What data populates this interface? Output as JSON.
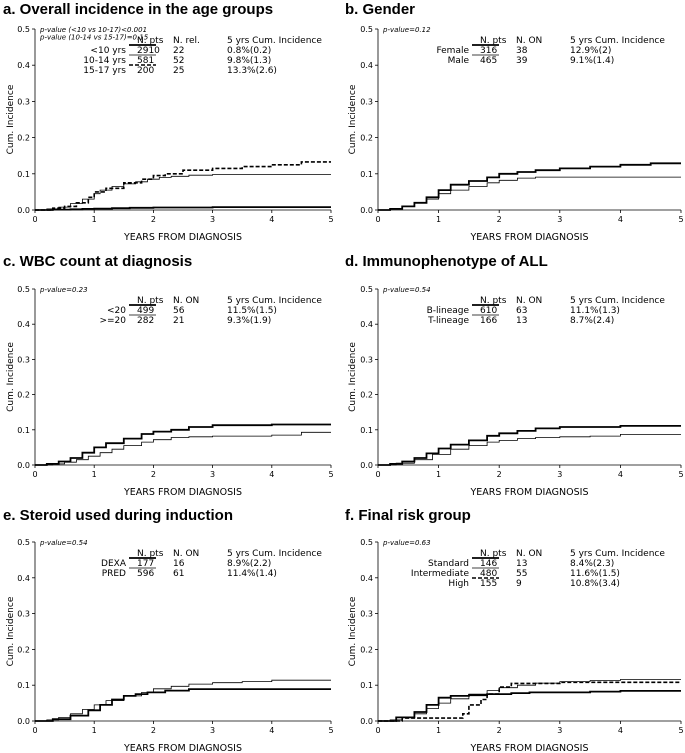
{
  "chart_data": [
    {
      "id": "a",
      "type": "line",
      "title": "a. Overall incidence in the age groups",
      "xlabel": "YEARS FROM DIAGNOSIS",
      "ylabel": "Cum. Incidence",
      "xlim": [
        0,
        5
      ],
      "ylim": [
        0,
        0.5
      ],
      "xticks": [
        "0",
        "1",
        "2",
        "3",
        "4",
        "5"
      ],
      "yticks": [
        "0.0",
        "0.1",
        "0.2",
        "0.3",
        "0.4",
        "0.5"
      ],
      "pvalue_lines": [
        "p-value (<10 vs 10-17)<0.001",
        "p-value (10-14 vs 15-17)=0.15"
      ],
      "legend_headers": [
        "N. pts",
        "N. rel.",
        "5 yrs Cum. Incidence"
      ],
      "series": [
        {
          "name": "<10 yrs",
          "style": "thick",
          "n": "2910",
          "events": "22",
          "ci": "0.8%(0.2)",
          "x": [
            0,
            0.3,
            0.6,
            0.8,
            1.0,
            1.3,
            1.6,
            2.0,
            2.5,
            3.0,
            5.0
          ],
          "y": [
            0,
            0.001,
            0.002,
            0.003,
            0.004,
            0.005,
            0.006,
            0.007,
            0.007,
            0.008,
            0.008
          ]
        },
        {
          "name": "10-14 yrs",
          "style": "thin",
          "n": "581",
          "events": "52",
          "ci": "9.8%(1.3)",
          "x": [
            0,
            0.2,
            0.4,
            0.6,
            0.8,
            1.0,
            1.1,
            1.3,
            1.5,
            1.7,
            1.9,
            2.1,
            2.3,
            2.6,
            3.0,
            5.0
          ],
          "y": [
            0,
            0.003,
            0.008,
            0.018,
            0.03,
            0.045,
            0.055,
            0.065,
            0.072,
            0.078,
            0.085,
            0.09,
            0.093,
            0.096,
            0.098,
            0.098
          ]
        },
        {
          "name": "15-17 yrs",
          "style": "dashed",
          "n": "200",
          "events": "25",
          "ci": "13.3%(2.6)",
          "x": [
            0,
            0.3,
            0.5,
            0.7,
            0.9,
            1.0,
            1.2,
            1.5,
            1.8,
            2.0,
            2.2,
            2.5,
            3.0,
            3.5,
            4.0,
            4.5,
            5.0
          ],
          "y": [
            0,
            0.005,
            0.01,
            0.02,
            0.035,
            0.05,
            0.06,
            0.075,
            0.085,
            0.095,
            0.1,
            0.11,
            0.115,
            0.12,
            0.125,
            0.133,
            0.133
          ]
        }
      ]
    },
    {
      "id": "b",
      "type": "line",
      "title": "b. Gender",
      "xlabel": "YEARS FROM DIAGNOSIS",
      "ylabel": "Cum. Incidence",
      "xlim": [
        0,
        5
      ],
      "ylim": [
        0,
        0.5
      ],
      "xticks": [
        "0",
        "1",
        "2",
        "3",
        "4",
        "5"
      ],
      "yticks": [
        "0.0",
        "0.1",
        "0.2",
        "0.3",
        "0.4",
        "0.5"
      ],
      "pvalue_lines": [
        "p-value=0.12"
      ],
      "legend_headers": [
        "N. pts",
        "N. ON",
        "5 yrs Cum. Incidence"
      ],
      "series": [
        {
          "name": "Female",
          "style": "thick",
          "n": "316",
          "events": "38",
          "ci": "12.9%(2)",
          "x": [
            0,
            0.2,
            0.4,
            0.6,
            0.8,
            1.0,
            1.2,
            1.5,
            1.8,
            2.0,
            2.3,
            2.6,
            3.0,
            3.5,
            4.0,
            4.5,
            5.0
          ],
          "y": [
            0,
            0.003,
            0.01,
            0.02,
            0.035,
            0.055,
            0.07,
            0.08,
            0.09,
            0.1,
            0.105,
            0.11,
            0.115,
            0.12,
            0.125,
            0.129,
            0.129
          ]
        },
        {
          "name": "Male",
          "style": "thin",
          "n": "465",
          "events": "39",
          "ci": "9.1%(1.4)",
          "x": [
            0,
            0.2,
            0.4,
            0.6,
            0.8,
            1.0,
            1.2,
            1.5,
            1.8,
            2.0,
            2.3,
            2.6,
            3.0,
            5.0
          ],
          "y": [
            0,
            0.003,
            0.01,
            0.02,
            0.03,
            0.045,
            0.055,
            0.065,
            0.075,
            0.082,
            0.088,
            0.091,
            0.091,
            0.091
          ]
        }
      ]
    },
    {
      "id": "c",
      "type": "line",
      "title": "c. WBC count at diagnosis",
      "xlabel": "YEARS FROM DIAGNOSIS",
      "ylabel": "Cum. Incidence",
      "xlim": [
        0,
        5
      ],
      "ylim": [
        0,
        0.5
      ],
      "xticks": [
        "0",
        "1",
        "2",
        "3",
        "4",
        "5"
      ],
      "yticks": [
        "0.0",
        "0.1",
        "0.2",
        "0.3",
        "0.4",
        "0.5"
      ],
      "pvalue_lines": [
        "p-value=0.23"
      ],
      "legend_headers": [
        "N. pts",
        "N. ON",
        "5 yrs Cum. Incidence"
      ],
      "series": [
        {
          "name": "<20",
          "style": "thick",
          "n": "499",
          "events": "56",
          "ci": "11.5%(1.5)",
          "x": [
            0,
            0.2,
            0.4,
            0.6,
            0.8,
            1.0,
            1.2,
            1.5,
            1.8,
            2.0,
            2.3,
            2.6,
            3.0,
            4.0,
            5.0
          ],
          "y": [
            0,
            0.003,
            0.01,
            0.02,
            0.035,
            0.05,
            0.062,
            0.075,
            0.088,
            0.095,
            0.1,
            0.108,
            0.113,
            0.115,
            0.115
          ]
        },
        {
          "name": ">=20",
          "style": "thin",
          "n": "282",
          "events": "21",
          "ci": "9.3%(1.9)",
          "x": [
            0,
            0.3,
            0.5,
            0.7,
            0.9,
            1.1,
            1.3,
            1.5,
            1.8,
            2.0,
            2.3,
            2.6,
            3.0,
            4.0,
            4.5,
            5.0
          ],
          "y": [
            0,
            0.003,
            0.008,
            0.015,
            0.025,
            0.035,
            0.045,
            0.055,
            0.065,
            0.072,
            0.078,
            0.08,
            0.082,
            0.085,
            0.093,
            0.093
          ]
        }
      ]
    },
    {
      "id": "d",
      "type": "line",
      "title": "d.  Immunophenotype of ALL",
      "xlabel": "YEARS FROM DIAGNOSIS",
      "ylabel": "Cum. Incidence",
      "xlim": [
        0,
        5
      ],
      "ylim": [
        0,
        0.5
      ],
      "xticks": [
        "0",
        "1",
        "2",
        "3",
        "4",
        "5"
      ],
      "yticks": [
        "0.0",
        "0.1",
        "0.2",
        "0.3",
        "0.4",
        "0.5"
      ],
      "pvalue_lines": [
        "p-value=0.54"
      ],
      "legend_headers": [
        "N. pts",
        "N. ON",
        "5 yrs Cum. Incidence"
      ],
      "series": [
        {
          "name": "B-lineage",
          "style": "thick",
          "n": "610",
          "events": "63",
          "ci": "11.1%(1.3)",
          "x": [
            0,
            0.2,
            0.4,
            0.6,
            0.8,
            1.0,
            1.2,
            1.5,
            1.8,
            2.0,
            2.3,
            2.6,
            3.0,
            4.0,
            5.0
          ],
          "y": [
            0,
            0.003,
            0.01,
            0.02,
            0.033,
            0.047,
            0.058,
            0.07,
            0.083,
            0.09,
            0.097,
            0.104,
            0.108,
            0.111,
            0.111
          ]
        },
        {
          "name": "T-lineage",
          "style": "thin",
          "n": "166",
          "events": "13",
          "ci": "8.7%(2.4)",
          "x": [
            0,
            0.3,
            0.6,
            0.9,
            1.2,
            1.5,
            1.8,
            2.0,
            2.3,
            2.6,
            3.0,
            3.5,
            4.0,
            5.0
          ],
          "y": [
            0,
            0.005,
            0.015,
            0.03,
            0.045,
            0.055,
            0.065,
            0.07,
            0.075,
            0.078,
            0.08,
            0.082,
            0.087,
            0.087
          ]
        }
      ]
    },
    {
      "id": "e",
      "type": "line",
      "title": "e. Steroid used during induction",
      "xlabel": "YEARS FROM DIAGNOSIS",
      "ylabel": "Cum. Incidence",
      "xlim": [
        0,
        5
      ],
      "ylim": [
        0,
        0.5
      ],
      "xticks": [
        "0",
        "1",
        "2",
        "3",
        "4",
        "5"
      ],
      "yticks": [
        "0.0",
        "0.1",
        "0.2",
        "0.3",
        "0.4",
        "0.5"
      ],
      "pvalue_lines": [
        "p-value=0.54"
      ],
      "legend_headers": [
        "N. pts",
        "N. ON",
        "5 yrs Cum. Incidence"
      ],
      "series": [
        {
          "name": "DEXA",
          "style": "thick",
          "n": "177",
          "events": "16",
          "ci": "8.9%(2.2)",
          "x": [
            0,
            0.3,
            0.6,
            0.9,
            1.1,
            1.3,
            1.5,
            1.7,
            1.9,
            2.2,
            2.6,
            3.0,
            5.0
          ],
          "y": [
            0,
            0.005,
            0.015,
            0.03,
            0.045,
            0.06,
            0.07,
            0.075,
            0.08,
            0.085,
            0.089,
            0.089,
            0.089
          ]
        },
        {
          "name": "PRED",
          "style": "thin",
          "n": "596",
          "events": "61",
          "ci": "11.4%(1.4)",
          "x": [
            0,
            0.2,
            0.4,
            0.6,
            0.8,
            1.0,
            1.2,
            1.5,
            1.8,
            2.0,
            2.3,
            2.6,
            3.0,
            3.5,
            4.0,
            5.0
          ],
          "y": [
            0,
            0.003,
            0.01,
            0.02,
            0.032,
            0.045,
            0.057,
            0.07,
            0.08,
            0.09,
            0.097,
            0.103,
            0.107,
            0.11,
            0.114,
            0.114
          ]
        }
      ]
    },
    {
      "id": "f",
      "type": "line",
      "title": "f. Final risk group",
      "xlabel": "YEARS FROM DIAGNOSIS",
      "ylabel": "Cum. Incidence",
      "xlim": [
        0,
        5
      ],
      "ylim": [
        0,
        0.5
      ],
      "xticks": [
        "0",
        "1",
        "2",
        "3",
        "4",
        "5"
      ],
      "yticks": [
        "0.0",
        "0.1",
        "0.2",
        "0.3",
        "0.4",
        "0.5"
      ],
      "pvalue_lines": [
        "p-value=0.63"
      ],
      "legend_headers": [
        "N. pts",
        "N. ON",
        "5 yrs Cum. Incidence"
      ],
      "series": [
        {
          "name": "Standard",
          "style": "thick",
          "n": "146",
          "events": "13",
          "ci": "8.4%(2.3)",
          "x": [
            0,
            0.3,
            0.6,
            0.8,
            1.0,
            1.2,
            1.5,
            1.8,
            2.2,
            2.5,
            3.0,
            3.5,
            4.0,
            5.0
          ],
          "y": [
            0,
            0.01,
            0.025,
            0.045,
            0.065,
            0.07,
            0.072,
            0.075,
            0.078,
            0.08,
            0.08,
            0.082,
            0.084,
            0.084
          ]
        },
        {
          "name": "Intermediate",
          "style": "thin",
          "n": "480",
          "events": "55",
          "ci": "11.6%(1.5)",
          "x": [
            0,
            0.2,
            0.4,
            0.6,
            0.8,
            1.0,
            1.2,
            1.5,
            1.8,
            2.0,
            2.3,
            2.6,
            3.0,
            3.5,
            4.0,
            5.0
          ],
          "y": [
            0,
            0.003,
            0.01,
            0.02,
            0.035,
            0.05,
            0.062,
            0.075,
            0.085,
            0.093,
            0.1,
            0.106,
            0.11,
            0.113,
            0.116,
            0.116
          ]
        },
        {
          "name": "High",
          "style": "dashed",
          "n": "155",
          "events": "9",
          "ci": "10.8%(3.4)",
          "x": [
            0,
            0.4,
            0.8,
            1.2,
            1.4,
            1.5,
            1.7,
            1.8,
            2.0,
            2.2,
            3.0,
            4.0,
            5.0
          ],
          "y": [
            0,
            0.008,
            0.008,
            0.008,
            0.02,
            0.045,
            0.06,
            0.075,
            0.095,
            0.105,
            0.108,
            0.108,
            0.108
          ]
        }
      ]
    }
  ]
}
